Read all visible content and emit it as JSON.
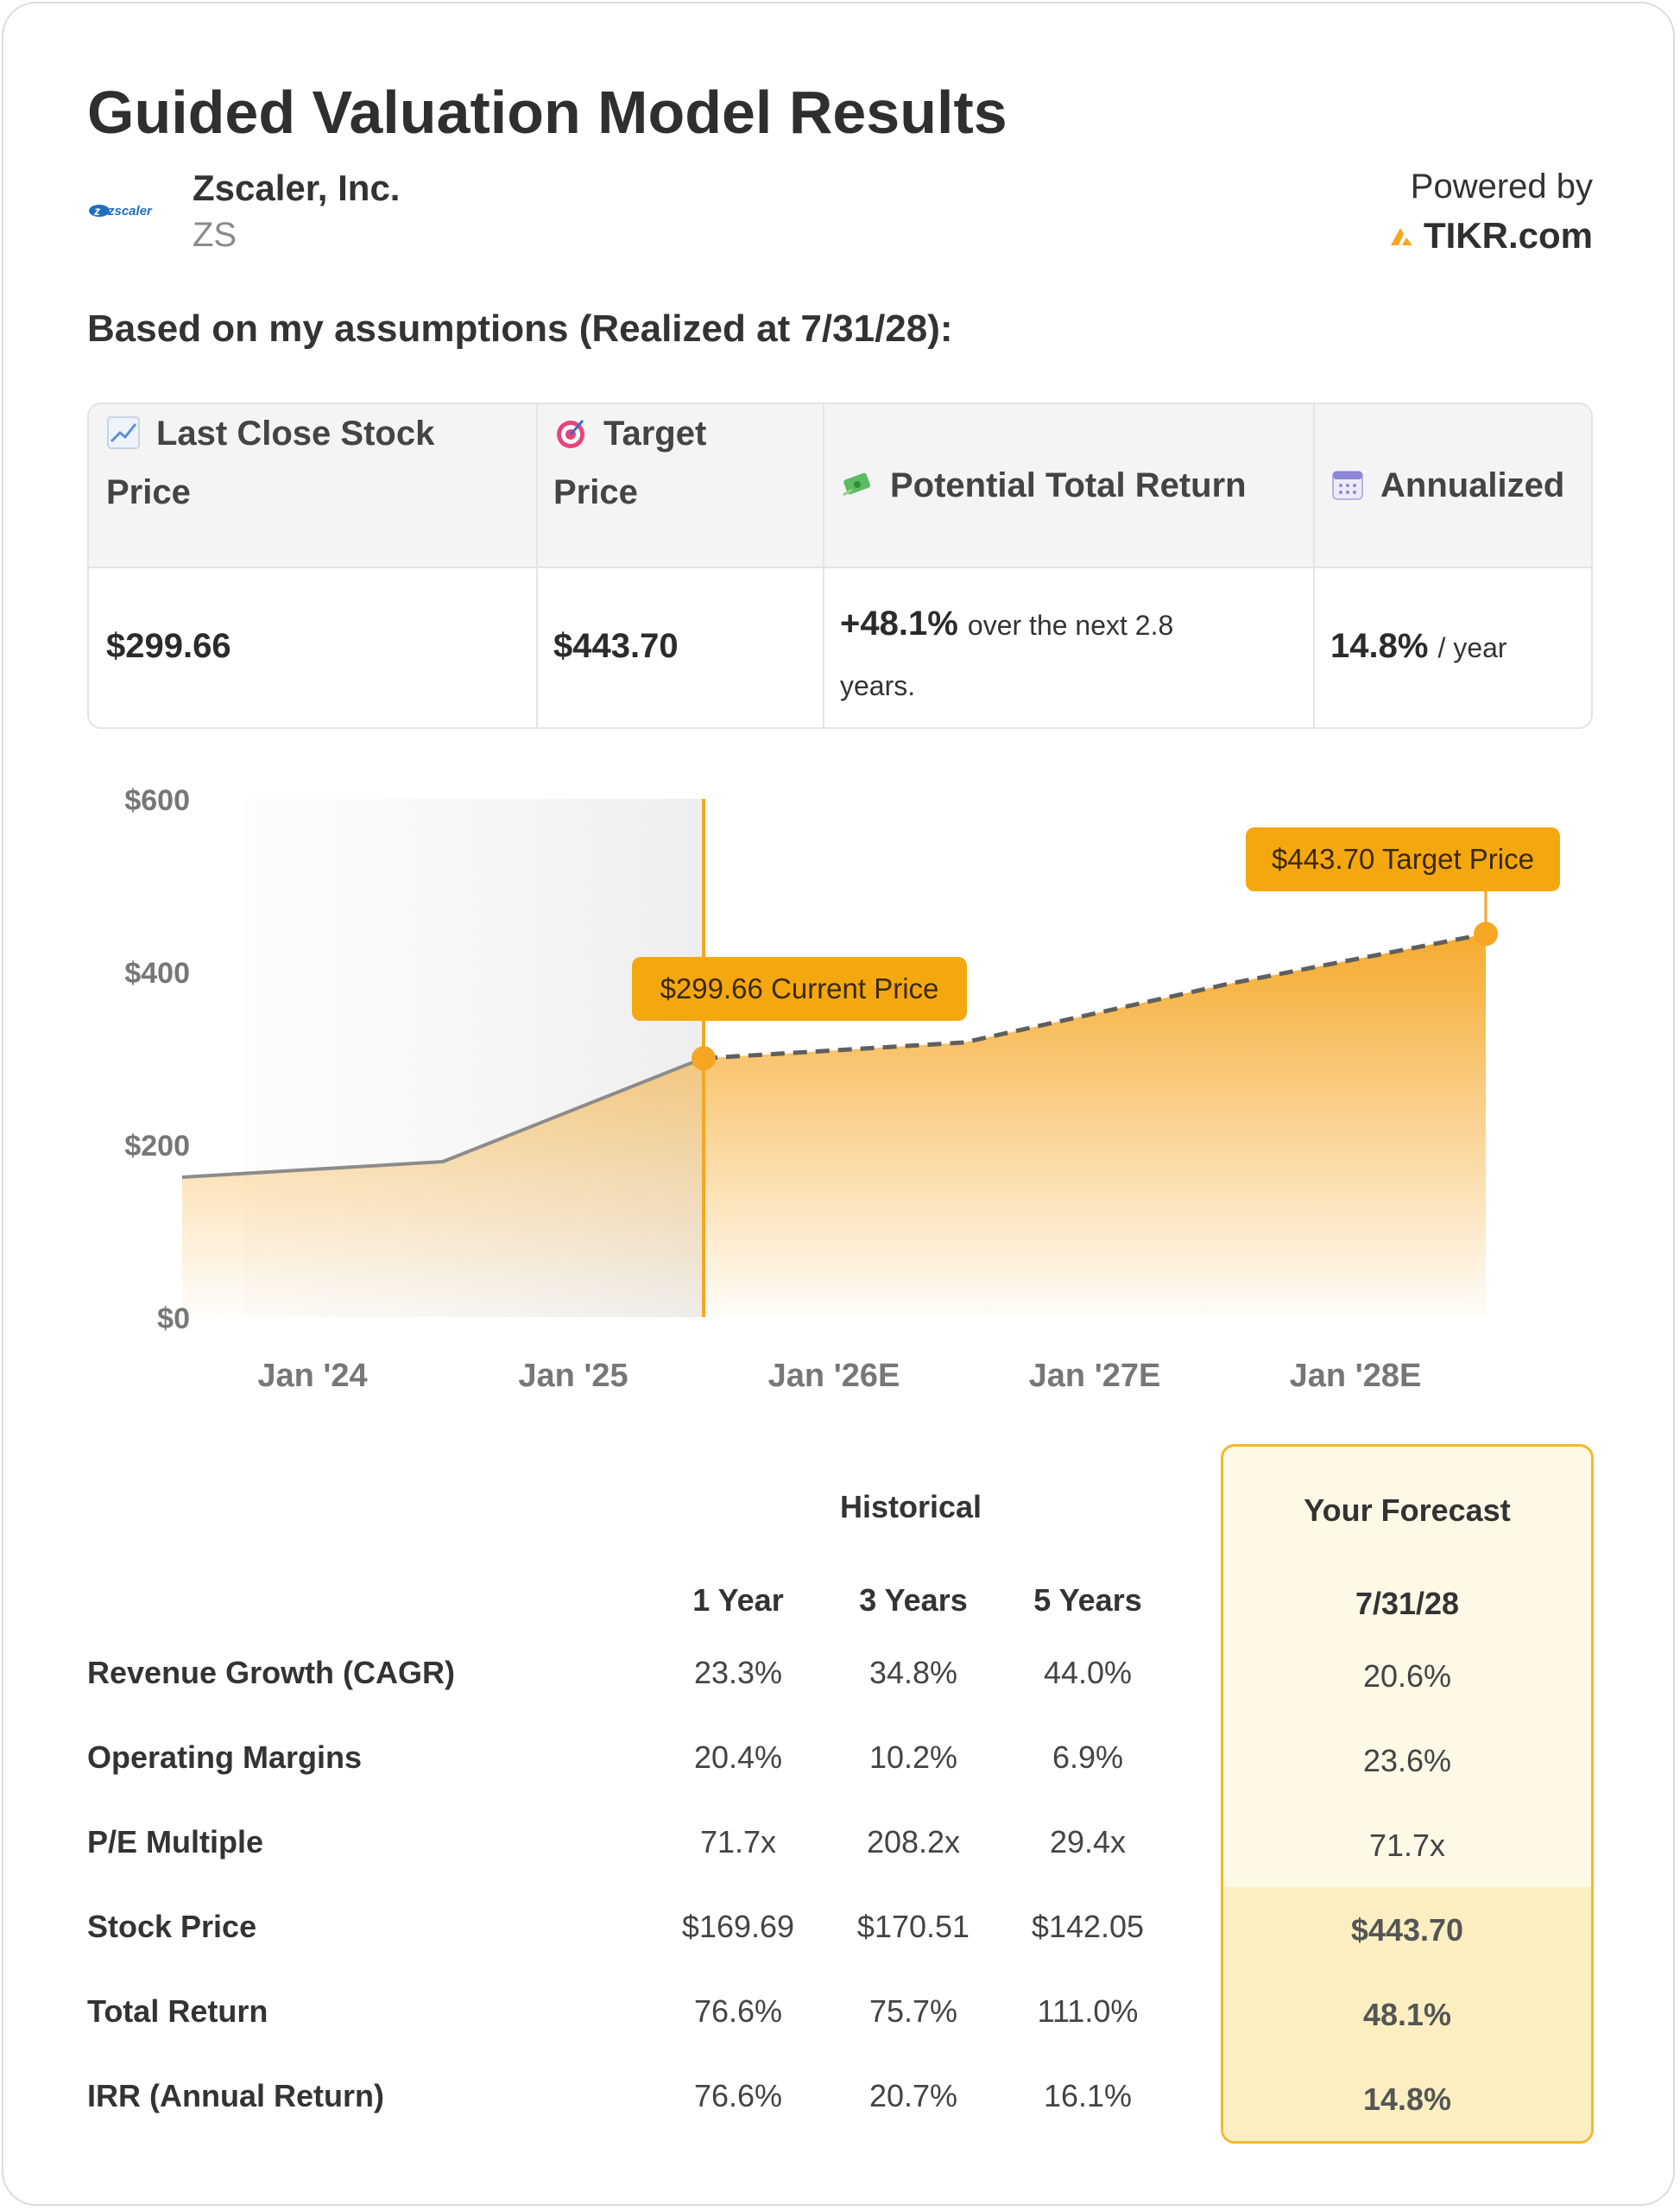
{
  "header": {
    "title": "Guided Valuation Model Results",
    "company": "Zscaler, Inc.",
    "ticker": "ZS",
    "logo_text": "zscaler",
    "powered_by": "Powered by",
    "brand": "TIKR.com",
    "assumptions": "Based on my assumptions (Realized at 7/31/28):"
  },
  "summary": {
    "last_close_label_1": "Last Close Stock",
    "last_close_label_2": "Price",
    "target_label_1": "Target",
    "target_label_2": "Price",
    "return_label": "Potential Total Return",
    "annualized_label": "Annualized",
    "last_close_value": "$299.66",
    "target_value": "$443.70",
    "return_value": "+48.1%",
    "return_suffix_1": "over the next 2.8",
    "return_suffix_2": "years.",
    "annualized_value": "14.8%",
    "annualized_suffix": "/ year",
    "icons": [
      "chart-increasing-icon",
      "target-icon",
      "money-with-wings-icon",
      "calendar-icon"
    ]
  },
  "chart_data": {
    "type": "area",
    "y_ticks": [
      "$0",
      "$200",
      "$400",
      "$600"
    ],
    "ylim": [
      0,
      600
    ],
    "x_ticks": [
      "Jan '24",
      "Jan '25",
      "Jan '26E",
      "Jan '27E",
      "Jan '28E"
    ],
    "historical": [
      {
        "x": "Jul '23",
        "y": 162
      },
      {
        "x": "Jul '24",
        "y": 180
      },
      {
        "x": "Jun '25",
        "y": 290
      },
      {
        "x": "Jul '25",
        "y": 299.66
      }
    ],
    "forecast": [
      {
        "x": "Jul '25",
        "y": 299.66
      },
      {
        "x": "Jul '26",
        "y": 318
      },
      {
        "x": "Jul '27",
        "y": 385
      },
      {
        "x": "Jul '28",
        "y": 443.7
      }
    ],
    "current_label": "$299.66 Current Price",
    "target_label": "$443.70 Target Price",
    "colors": {
      "accent": "#f5a623",
      "line": "#8c8c8c",
      "dashed": "#5f5f5f"
    }
  },
  "metrics": {
    "historical_label": "Historical",
    "forecast_label": "Your Forecast",
    "columns": [
      "1 Year",
      "3 Years",
      "5 Years"
    ],
    "forecast_date": "7/31/28",
    "rows": [
      {
        "label": "Revenue Growth (CAGR)",
        "values": [
          "23.3%",
          "34.8%",
          "44.0%"
        ],
        "forecast": "20.6%"
      },
      {
        "label": "Operating Margins",
        "values": [
          "20.4%",
          "10.2%",
          "6.9%"
        ],
        "forecast": "23.6%"
      },
      {
        "label": "P/E Multiple",
        "values": [
          "71.7x",
          "208.2x",
          "29.4x"
        ],
        "forecast": "71.7x"
      },
      {
        "label": "Stock Price",
        "values": [
          "$169.69",
          "$170.51",
          "$142.05"
        ],
        "forecast": "$443.70"
      },
      {
        "label": "Total Return",
        "values": [
          "76.6%",
          "75.7%",
          "111.0%"
        ],
        "forecast": "48.1%"
      },
      {
        "label": "IRR (Annual Return)",
        "values": [
          "76.6%",
          "20.7%",
          "16.1%"
        ],
        "forecast": "14.8%"
      }
    ]
  }
}
